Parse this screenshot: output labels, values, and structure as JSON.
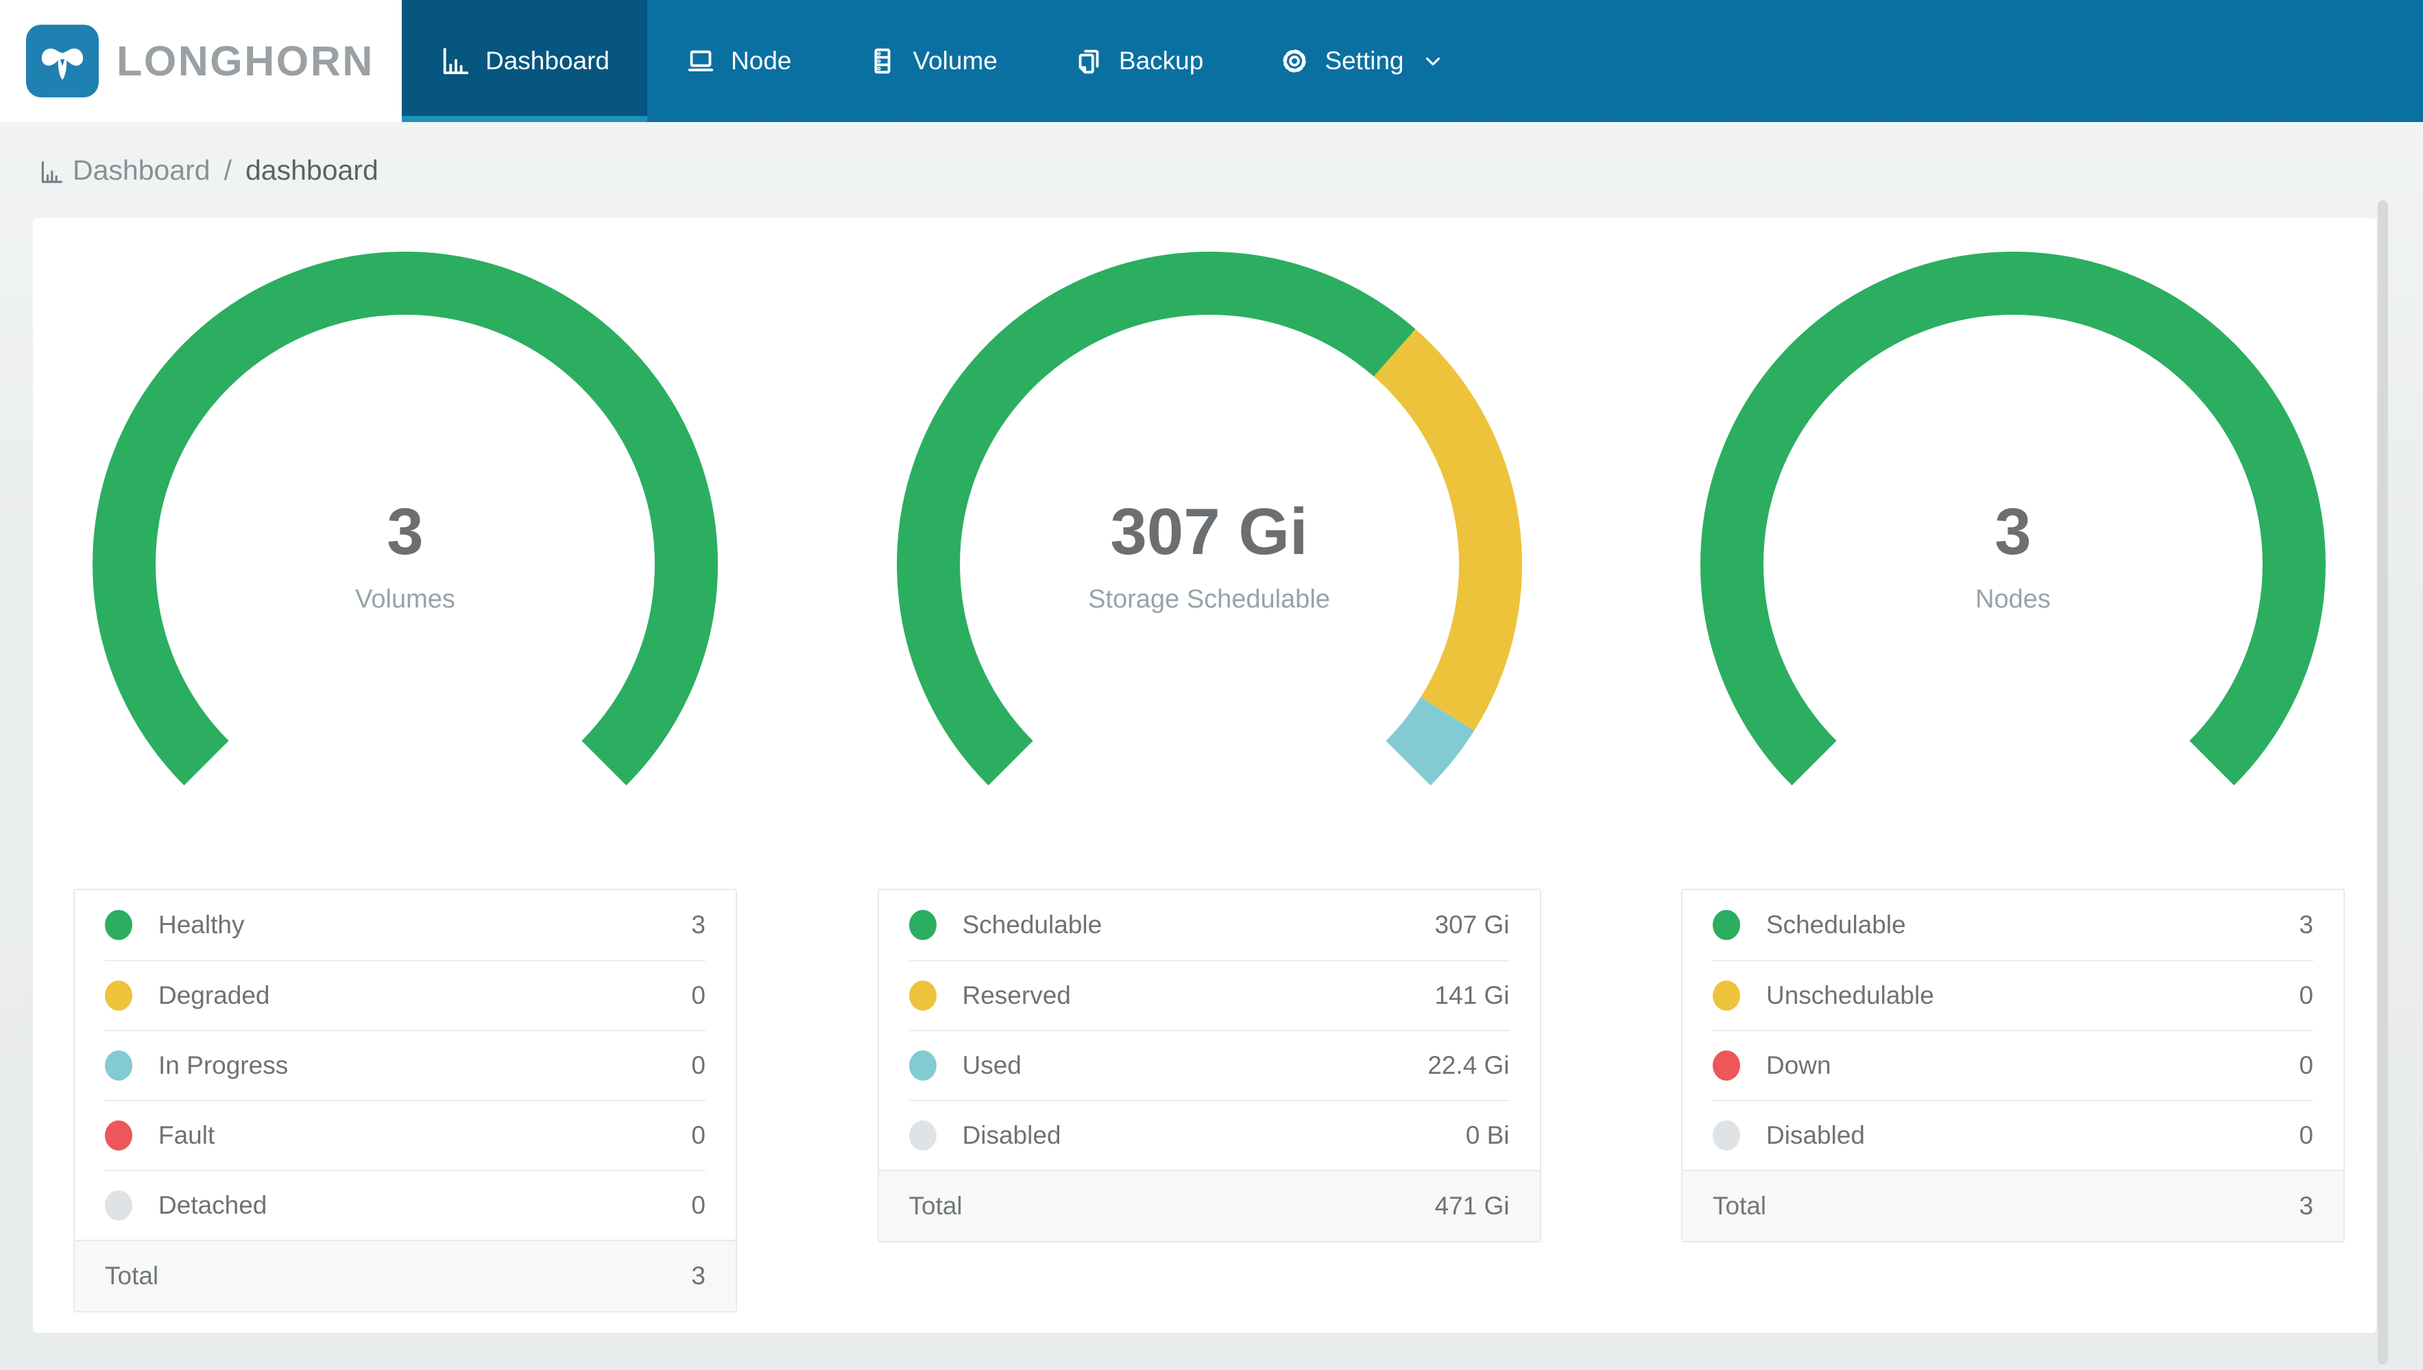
{
  "navbar": {
    "brand": "LONGHORN",
    "items": [
      {
        "label": "Dashboard",
        "icon": "bar-chart-icon",
        "active": true
      },
      {
        "label": "Node",
        "icon": "laptop-icon",
        "active": false
      },
      {
        "label": "Volume",
        "icon": "server-icon",
        "active": false
      },
      {
        "label": "Backup",
        "icon": "copy-icon",
        "active": false
      },
      {
        "label": "Setting",
        "icon": "gear-icon",
        "active": false,
        "has_caret": true
      }
    ]
  },
  "breadcrumb": {
    "icon": "bar-chart-icon",
    "section": "Dashboard",
    "separator": "/",
    "page": "dashboard"
  },
  "colors": {
    "navbar": "#0a70a2",
    "navbar_active": "#06567f",
    "navbar_underline": "#1f8fbc",
    "logo_square": "#1f81b2",
    "brand_text": "#9aa0a4",
    "green": "#2bae60",
    "yellow": "#eec33c",
    "teal": "#82cbd2",
    "red": "#ee5657",
    "gray": "#e0e3e5",
    "page_bg": "#eceff0",
    "card_bg": "#ffffff",
    "total_row_bg": "#f7f8f8"
  },
  "chart_data": [
    {
      "type": "pie",
      "variant": "gauge",
      "start_angle": 225,
      "sweep": 270,
      "center_value": "3",
      "center_label": "Volumes",
      "segments": [
        {
          "key": "healthy",
          "value": 3,
          "color": "#2bae60"
        },
        {
          "key": "degraded",
          "value": 0,
          "color": "#eec33c"
        },
        {
          "key": "in-progress",
          "value": 0,
          "color": "#82cbd2"
        },
        {
          "key": "fault",
          "value": 0,
          "color": "#ee5657"
        },
        {
          "key": "detached",
          "value": 0,
          "color": "#e0e3e5"
        }
      ],
      "legend": {
        "rows": [
          {
            "label": "Healthy",
            "value": "3",
            "color": "#2bae60"
          },
          {
            "label": "Degraded",
            "value": "0",
            "color": "#eec33c"
          },
          {
            "label": "In Progress",
            "value": "0",
            "color": "#82cbd2"
          },
          {
            "label": "Fault",
            "value": "0",
            "color": "#ee5657"
          },
          {
            "label": "Detached",
            "value": "0",
            "color": "#e0e3e5"
          }
        ],
        "total_label": "Total",
        "total_value": "3"
      }
    },
    {
      "type": "pie",
      "variant": "gauge",
      "start_angle": 225,
      "sweep": 270,
      "center_value": "307 Gi",
      "center_label": "Storage Schedulable",
      "segments": [
        {
          "key": "schedulable",
          "value": 307,
          "color": "#2bae60"
        },
        {
          "key": "reserved",
          "value": 141,
          "color": "#eec33c"
        },
        {
          "key": "used",
          "value": 22.4,
          "color": "#82cbd2"
        },
        {
          "key": "disabled",
          "value": 0,
          "color": "#e0e3e5"
        }
      ],
      "legend": {
        "rows": [
          {
            "label": "Schedulable",
            "value": "307 Gi",
            "color": "#2bae60"
          },
          {
            "label": "Reserved",
            "value": "141 Gi",
            "color": "#eec33c"
          },
          {
            "label": "Used",
            "value": "22.4 Gi",
            "color": "#82cbd2"
          },
          {
            "label": "Disabled",
            "value": "0 Bi",
            "color": "#e0e3e5"
          }
        ],
        "total_label": "Total",
        "total_value": "471 Gi"
      }
    },
    {
      "type": "pie",
      "variant": "gauge",
      "start_angle": 225,
      "sweep": 270,
      "center_value": "3",
      "center_label": "Nodes",
      "segments": [
        {
          "key": "schedulable",
          "value": 3,
          "color": "#2bae60"
        },
        {
          "key": "unschedulable",
          "value": 0,
          "color": "#eec33c"
        },
        {
          "key": "down",
          "value": 0,
          "color": "#ee5657"
        },
        {
          "key": "disabled",
          "value": 0,
          "color": "#e0e3e5"
        }
      ],
      "legend": {
        "rows": [
          {
            "label": "Schedulable",
            "value": "3",
            "color": "#2bae60"
          },
          {
            "label": "Unschedulable",
            "value": "0",
            "color": "#eec33c"
          },
          {
            "label": "Down",
            "value": "0",
            "color": "#ee5657"
          },
          {
            "label": "Disabled",
            "value": "0",
            "color": "#e0e3e5"
          }
        ],
        "total_label": "Total",
        "total_value": "3"
      }
    }
  ]
}
